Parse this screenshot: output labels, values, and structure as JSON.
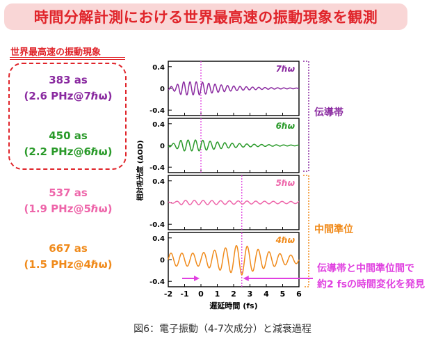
{
  "title": "時間分解計測における世界最高速の振動現象を観測",
  "subtitle": "世界最高速の振動現象",
  "items": [
    {
      "line1": "383 as",
      "line2": "(2.6 PHz@7ℏω)",
      "color": "#8a2aa0"
    },
    {
      "line1": "450 as",
      "line2": "(2.2 PHz@6ℏω)",
      "color": "#2a9a2a"
    },
    {
      "line1": "537 as",
      "line2": "(1.9 PHz@5ℏω)",
      "color": "#ee66aa"
    },
    {
      "line1": "667 as",
      "line2": "(1.5 PHz@4ℏω)",
      "color": "#f08a1a"
    }
  ],
  "chart_data": {
    "type": "line",
    "xlabel": "遅延時間 (fs)",
    "ylabel": "相対吸光度 (ΔOD)",
    "x_ticks": [
      -2,
      -1,
      0,
      1,
      2,
      3,
      4,
      5,
      6
    ],
    "xlim": [
      -2,
      6
    ],
    "ylim": [
      -0.5,
      0.5
    ],
    "y_ticks": [
      "0.4",
      "0",
      "-0.4"
    ],
    "panels": [
      {
        "label": "7ℏω",
        "color": "#8a2aa0",
        "period_fs": 0.383,
        "amplitude": 0.12,
        "decay_fs": 2.0,
        "marker_fs": 0
      },
      {
        "label": "6ℏω",
        "color": "#2a9a2a",
        "period_fs": 0.45,
        "amplitude": 0.1,
        "decay_fs": 2.2,
        "marker_fs": 0
      },
      {
        "label": "5ℏω",
        "color": "#ee66aa",
        "period_fs": 0.537,
        "amplitude": 0.04,
        "decay_fs": 8.0,
        "marker_fs": 2.5
      },
      {
        "label": "4ℏω",
        "color": "#f08a1a",
        "period_fs": 0.667,
        "amplitude": 0.28,
        "decay_fs": 5.0,
        "marker_fs": 2.5
      }
    ],
    "groups": [
      {
        "label": "伝導帯",
        "color": "#8a2aa0"
      },
      {
        "label": "中間準位",
        "color": "#f08a1a"
      }
    ],
    "annotation": {
      "line1": "伝導帯と中間準位間で",
      "line2": "約2 fsの時間変化を発見",
      "color": "#e040e0"
    }
  },
  "caption": "図6：電子振動（4-7次成分）と減衰過程"
}
